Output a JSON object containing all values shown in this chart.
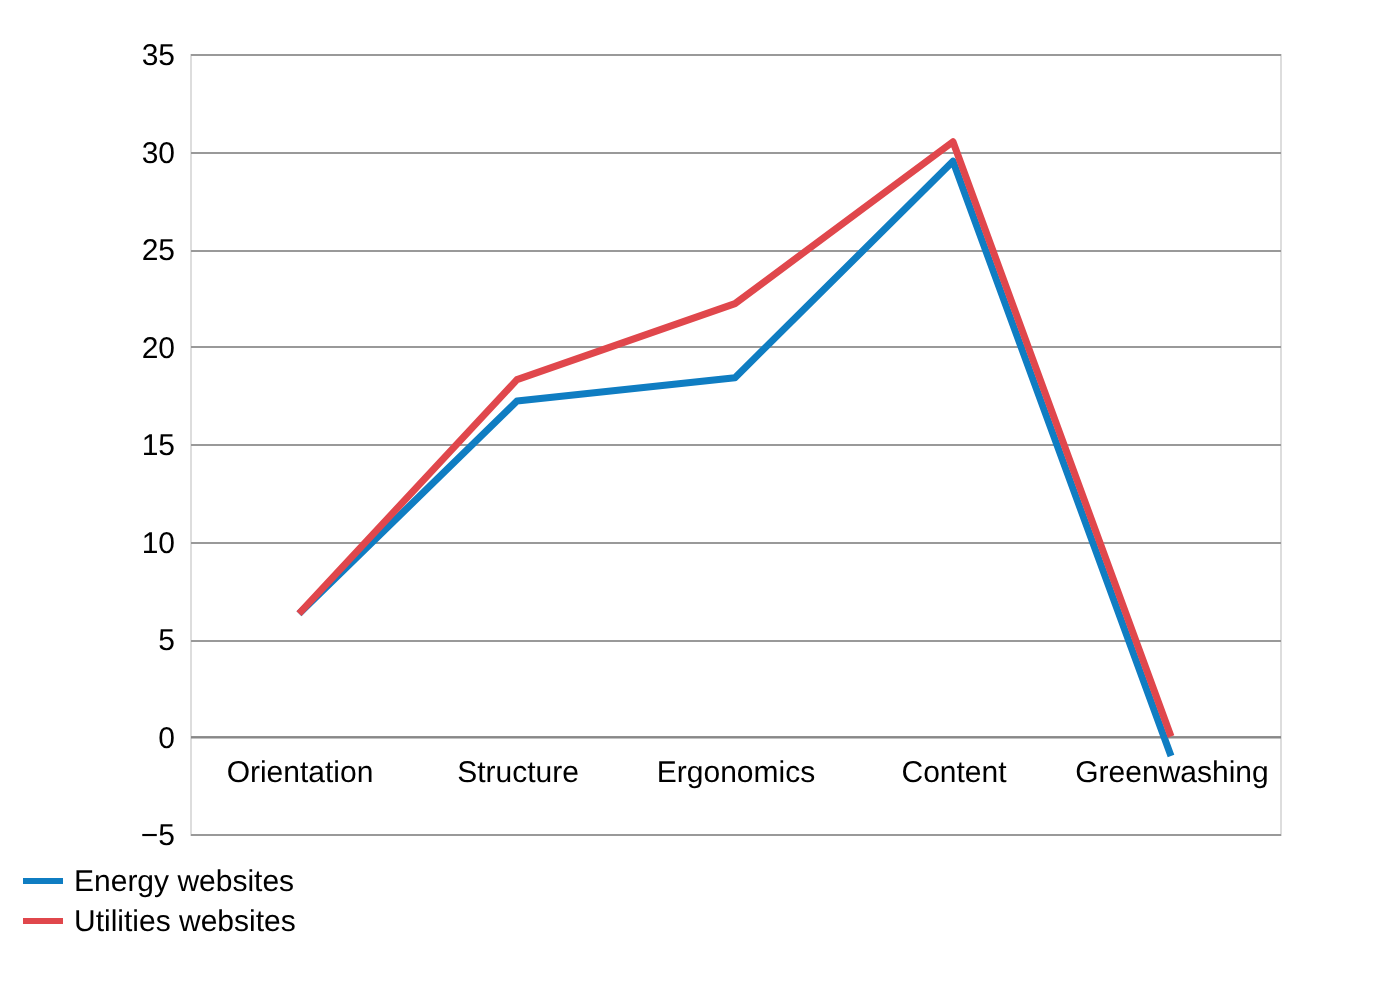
{
  "chart_data": {
    "type": "line",
    "categories": [
      "Orientation",
      "Structure",
      "Ergonomics",
      "Content",
      "Greenwashing"
    ],
    "series": [
      {
        "name": "Energy websites",
        "color": "#0f7dc2",
        "values": [
          6.3,
          17.2,
          18.4,
          29.5,
          -1.0
        ]
      },
      {
        "name": "Utilities websites",
        "color": "#e0474c",
        "values": [
          6.3,
          18.3,
          22.2,
          30.5,
          0
        ]
      }
    ],
    "ylim": [
      -5,
      35
    ],
    "yticks": [
      -5,
      0,
      5,
      10,
      15,
      20,
      25,
      30,
      35
    ],
    "grid": "y",
    "legend": "bottom left",
    "marker": "none",
    "line_style": "solid"
  }
}
